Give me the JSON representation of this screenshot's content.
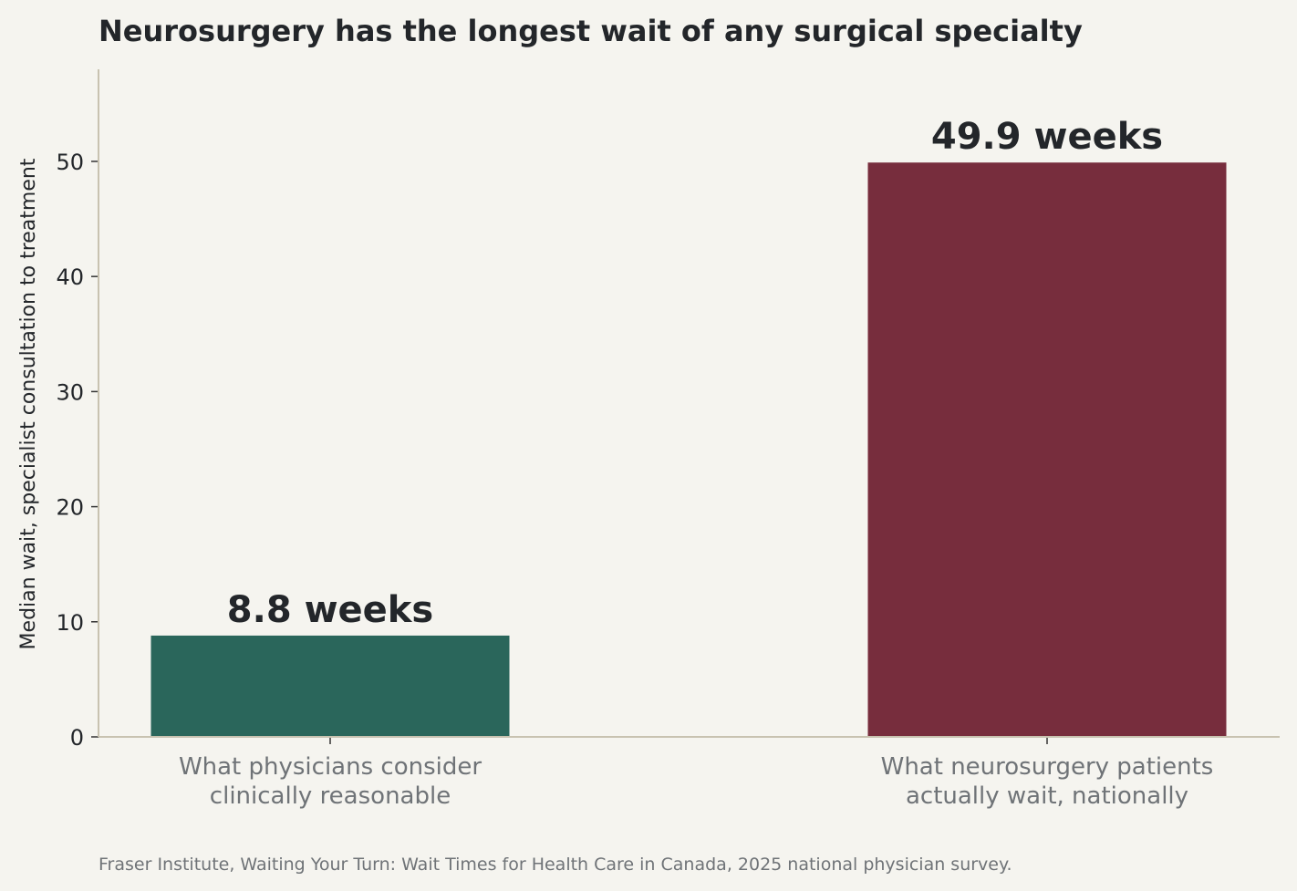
{
  "chart_data": {
    "type": "bar",
    "title": "Neurosurgery has the longest wait of any surgical specialty",
    "ylabel": "Median wait, specialist consultation to treatment",
    "xlabel": "",
    "categories": [
      [
        "What physicians consider",
        "clinically reasonable"
      ],
      [
        "What neurosurgery patients",
        "actually wait, nationally"
      ]
    ],
    "values": [
      8.8,
      49.9
    ],
    "value_labels": [
      "8.8 weeks",
      "49.9 weeks"
    ],
    "bar_colors": [
      "#2a665b",
      "#772d3d"
    ],
    "ylim": [
      0,
      58
    ],
    "yticks": [
      0,
      10,
      20,
      30,
      40,
      50
    ],
    "grid": false,
    "legend": "none",
    "source": "Fraser Institute, Waiting Your Turn: Wait Times for Health Care in Canada, 2025 national physician survey."
  },
  "colors": {
    "background": "#f5f4ef",
    "axis": "#c8c2b0",
    "text": "#23262a",
    "muted_text": "#6f7377"
  }
}
